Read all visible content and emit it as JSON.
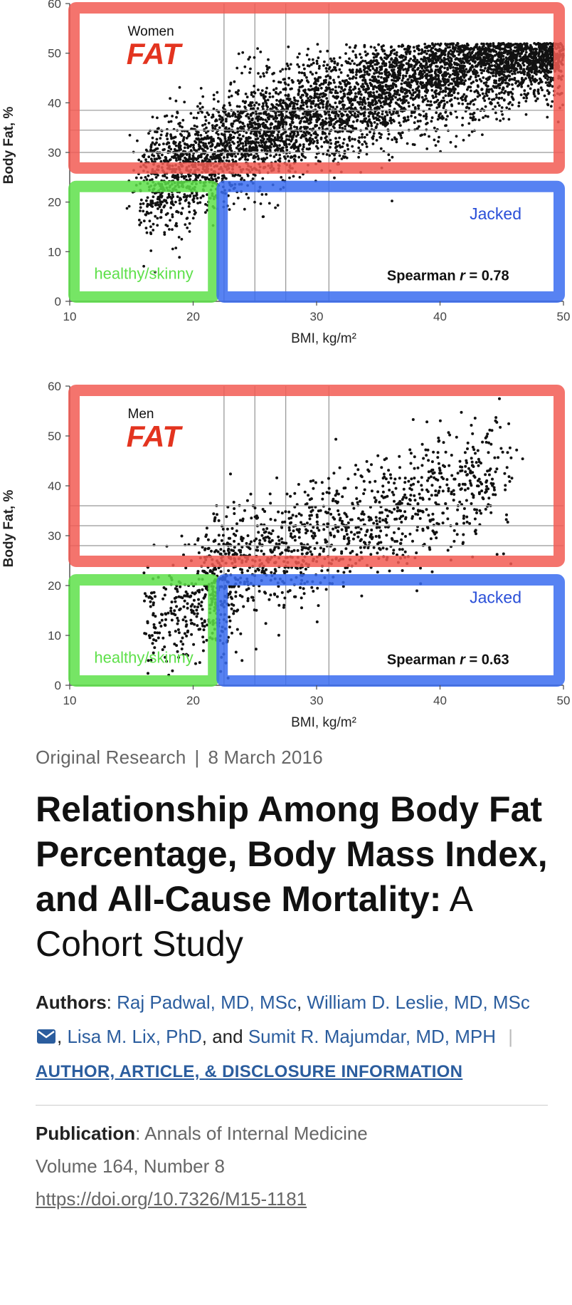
{
  "chart_data": [
    {
      "type": "scatter",
      "panel_title": "Women",
      "xlabel": "BMI, kg/m²",
      "ylabel": "Body Fat, %",
      "xlim": [
        10,
        50
      ],
      "ylim": [
        0,
        60
      ],
      "xticks": [
        10,
        20,
        30,
        40,
        50
      ],
      "yticks": [
        0,
        10,
        20,
        30,
        40,
        50,
        60
      ],
      "stat_label": "Spearman",
      "stat_value": "r = 0.78",
      "reference_lines_x": [
        22.5,
        25,
        27.5,
        31
      ],
      "reference_lines_y": [
        30,
        34.5,
        38.5
      ],
      "point_cloud": {
        "bmi_range": [
          15,
          50
        ],
        "bodyfat_range": [
          10,
          55
        ],
        "trend": "positive",
        "density": "very dense"
      },
      "overlay_regions": [
        {
          "label": "FAT",
          "color": "#f25c54",
          "x": [
            10,
            50
          ],
          "y": [
            26,
            60
          ]
        },
        {
          "label": "healthy/skinny",
          "color": "#5ee04a",
          "x": [
            10,
            22
          ],
          "y": [
            0,
            24
          ]
        },
        {
          "label": "Jacked",
          "color": "#3a6cf0",
          "x": [
            22,
            50
          ],
          "y": [
            0,
            24
          ]
        }
      ]
    },
    {
      "type": "scatter",
      "panel_title": "Men",
      "xlabel": "BMI, kg/m²",
      "ylabel": "Body Fat, %",
      "xlim": [
        10,
        50
      ],
      "ylim": [
        0,
        60
      ],
      "xticks": [
        10,
        20,
        30,
        40,
        50
      ],
      "yticks": [
        0,
        10,
        20,
        30,
        40,
        50,
        60
      ],
      "stat_label": "Spearman",
      "stat_value": "r = 0.63",
      "reference_lines_x": [
        22.5,
        25,
        27.5,
        31
      ],
      "reference_lines_y": [
        28,
        32,
        36
      ],
      "point_cloud": {
        "bmi_range": [
          15,
          47
        ],
        "bodyfat_range": [
          5,
          56
        ],
        "trend": "positive",
        "density": "moderate"
      },
      "overlay_regions": [
        {
          "label": "FAT",
          "color": "#f25c54",
          "x": [
            10,
            50
          ],
          "y": [
            24,
            60
          ]
        },
        {
          "label": "healthy/skinny",
          "color": "#5ee04a",
          "x": [
            10,
            22
          ],
          "y": [
            0,
            22
          ]
        },
        {
          "label": "Jacked",
          "color": "#3a6cf0",
          "x": [
            22,
            50
          ],
          "y": [
            0,
            22
          ]
        }
      ]
    }
  ],
  "colors": {
    "fat": "#f25c54",
    "healthy": "#5ee04a",
    "jacked": "#3a6cf0",
    "link": "#2b5d9e"
  },
  "article": {
    "category": "Original Research",
    "date": "8 March 2016",
    "title_bold": "Relationship Among Body Fat Percentage, Body Mass Index, and All-Cause Mortality:",
    "title_rest": " A Cohort Study",
    "authors_label": "Authors",
    "author1": "Raj Padwal, MD, MSc",
    "author2": "William D. Leslie, MD, MSc",
    "author3": "Lisa M. Lix, PhD",
    "and": "and",
    "author4": "Sumit R. Majumdar, MD, MPH",
    "disclosure_link": "AUTHOR, ARTICLE, & DISCLOSURE INFORMATION",
    "mail_icon": "envelope-icon",
    "publication_label": "Publication",
    "journal": "Annals of Internal Medicine",
    "volume": "Volume 164, Number 8",
    "doi": "https://doi.org/10.7326/M15-1181"
  }
}
